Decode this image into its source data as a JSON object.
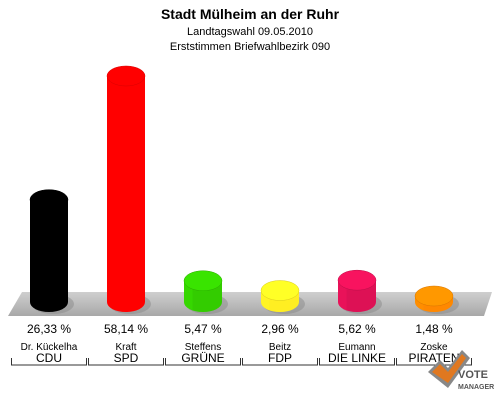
{
  "chart_data": {
    "type": "bar",
    "title": "Stadt Mülheim an der Ruhr",
    "subtitle": "Landtagswahl 09.05.2010",
    "subtitle2": "Erststimmen Briefwahlbezirk 090",
    "ylim": [
      0,
      60
    ],
    "grid": false,
    "categories": [
      "CDU",
      "SPD",
      "GRÜNE",
      "FDP",
      "DIE LINKE",
      "PIRATEN"
    ],
    "candidates": [
      "Dr. Kückelha",
      "Kraft",
      "Steffens",
      "Beitz",
      "Eumann",
      "Zoske"
    ],
    "values": [
      26.33,
      58.14,
      5.47,
      2.96,
      5.62,
      1.48
    ],
    "value_labels": [
      "26,33 %",
      "58,14 %",
      "5,47 %",
      "2,96 %",
      "5,62 %",
      "1,48 %"
    ],
    "colors": [
      "#000000",
      "#ff0000",
      "#33cc00",
      "#ffee22",
      "#dd1155",
      "#ff8800"
    ]
  },
  "logo": {
    "text_line1": "VOTE",
    "text_line2": "MANAGER"
  }
}
